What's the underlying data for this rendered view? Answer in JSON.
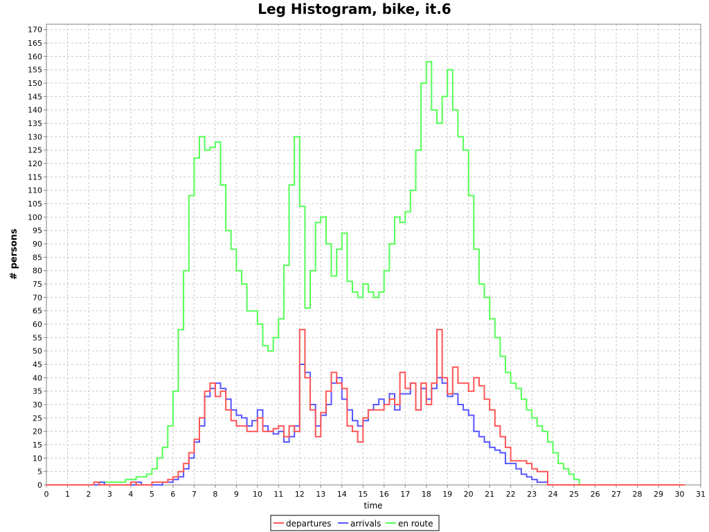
{
  "chart_data": {
    "type": "line",
    "title": "Leg Histogram, bike, it.6",
    "xlabel": "time",
    "ylabel": "# persons",
    "xlim": [
      0,
      31
    ],
    "ylim": [
      0,
      172
    ],
    "x_ticks": [
      0,
      1,
      2,
      3,
      4,
      5,
      6,
      7,
      8,
      9,
      10,
      11,
      12,
      13,
      14,
      15,
      16,
      17,
      18,
      19,
      20,
      21,
      22,
      23,
      24,
      25,
      26,
      27,
      28,
      29,
      30,
      31
    ],
    "y_ticks": [
      0,
      5,
      10,
      15,
      20,
      25,
      30,
      35,
      40,
      45,
      50,
      55,
      60,
      65,
      70,
      75,
      80,
      85,
      90,
      95,
      100,
      105,
      110,
      115,
      120,
      125,
      130,
      135,
      140,
      145,
      150,
      155,
      160,
      165,
      170
    ],
    "grid": true,
    "legend_position": "bottom",
    "x_step": 0.25,
    "x_start": 0,
    "series": [
      {
        "name": "departures",
        "color": "#ff5555",
        "values": [
          0,
          0,
          0,
          0,
          0,
          0,
          0,
          0,
          0,
          1,
          0,
          0,
          0,
          0,
          0,
          0,
          1,
          0,
          0,
          0,
          1,
          1,
          1,
          2,
          3,
          5,
          8,
          12,
          17,
          25,
          35,
          38,
          33,
          35,
          28,
          24,
          22,
          22,
          20,
          20,
          25,
          20,
          20,
          21,
          22,
          18,
          22,
          20,
          58,
          40,
          28,
          18,
          27,
          35,
          42,
          38,
          36,
          22,
          20,
          16,
          25,
          28,
          28,
          28,
          30,
          32,
          30,
          42,
          36,
          38,
          28,
          38,
          30,
          38,
          58,
          40,
          34,
          44,
          38,
          38,
          35,
          40,
          37,
          32,
          28,
          22,
          18,
          14,
          9,
          9,
          9,
          8,
          6,
          5,
          5,
          0,
          0,
          0,
          0,
          0,
          0,
          0,
          0,
          0,
          0,
          0,
          0,
          0,
          0,
          0,
          0,
          0,
          0,
          0,
          0,
          0,
          0,
          0,
          0,
          0,
          0
        ]
      },
      {
        "name": "arrivals",
        "color": "#5555ff",
        "values": [
          0,
          0,
          0,
          0,
          0,
          0,
          0,
          0,
          0,
          0,
          1,
          0,
          0,
          0,
          0,
          0,
          0,
          1,
          0,
          0,
          0,
          0,
          1,
          1,
          2,
          3,
          6,
          10,
          16,
          22,
          33,
          36,
          38,
          36,
          32,
          28,
          26,
          25,
          22,
          24,
          28,
          22,
          20,
          19,
          20,
          16,
          18,
          22,
          45,
          42,
          30,
          22,
          26,
          30,
          38,
          40,
          32,
          28,
          24,
          22,
          24,
          28,
          30,
          32,
          30,
          34,
          28,
          34,
          34,
          38,
          28,
          36,
          32,
          36,
          40,
          38,
          33,
          34,
          30,
          28,
          26,
          20,
          18,
          16,
          14,
          13,
          12,
          8,
          8,
          6,
          4,
          3,
          2,
          1,
          1,
          0,
          0,
          0,
          0,
          0,
          0,
          0,
          0,
          0,
          0,
          0,
          0,
          0,
          0,
          0,
          0,
          0,
          0,
          0,
          0,
          0,
          0,
          0,
          0,
          0,
          0
        ]
      },
      {
        "name": "en route",
        "color": "#55ff55",
        "values": [
          0,
          0,
          0,
          0,
          0,
          0,
          0,
          0,
          0,
          0,
          1,
          1,
          1,
          1,
          1,
          2,
          2,
          3,
          3,
          4,
          6,
          10,
          14,
          22,
          35,
          58,
          80,
          108,
          122,
          130,
          125,
          126,
          128,
          112,
          95,
          88,
          80,
          75,
          65,
          65,
          60,
          52,
          50,
          55,
          62,
          82,
          112,
          130,
          104,
          66,
          80,
          98,
          100,
          90,
          78,
          88,
          94,
          76,
          72,
          70,
          75,
          72,
          70,
          72,
          80,
          90,
          100,
          98,
          102,
          110,
          125,
          150,
          158,
          140,
          135,
          145,
          155,
          140,
          130,
          125,
          108,
          88,
          75,
          70,
          62,
          55,
          48,
          42,
          38,
          36,
          32,
          28,
          25,
          22,
          20,
          16,
          12,
          8,
          6,
          4,
          2,
          0,
          0,
          0,
          0,
          0,
          0,
          0,
          0,
          0,
          0,
          0,
          0,
          0,
          0,
          0,
          0,
          0,
          0,
          0,
          0
        ]
      }
    ]
  }
}
